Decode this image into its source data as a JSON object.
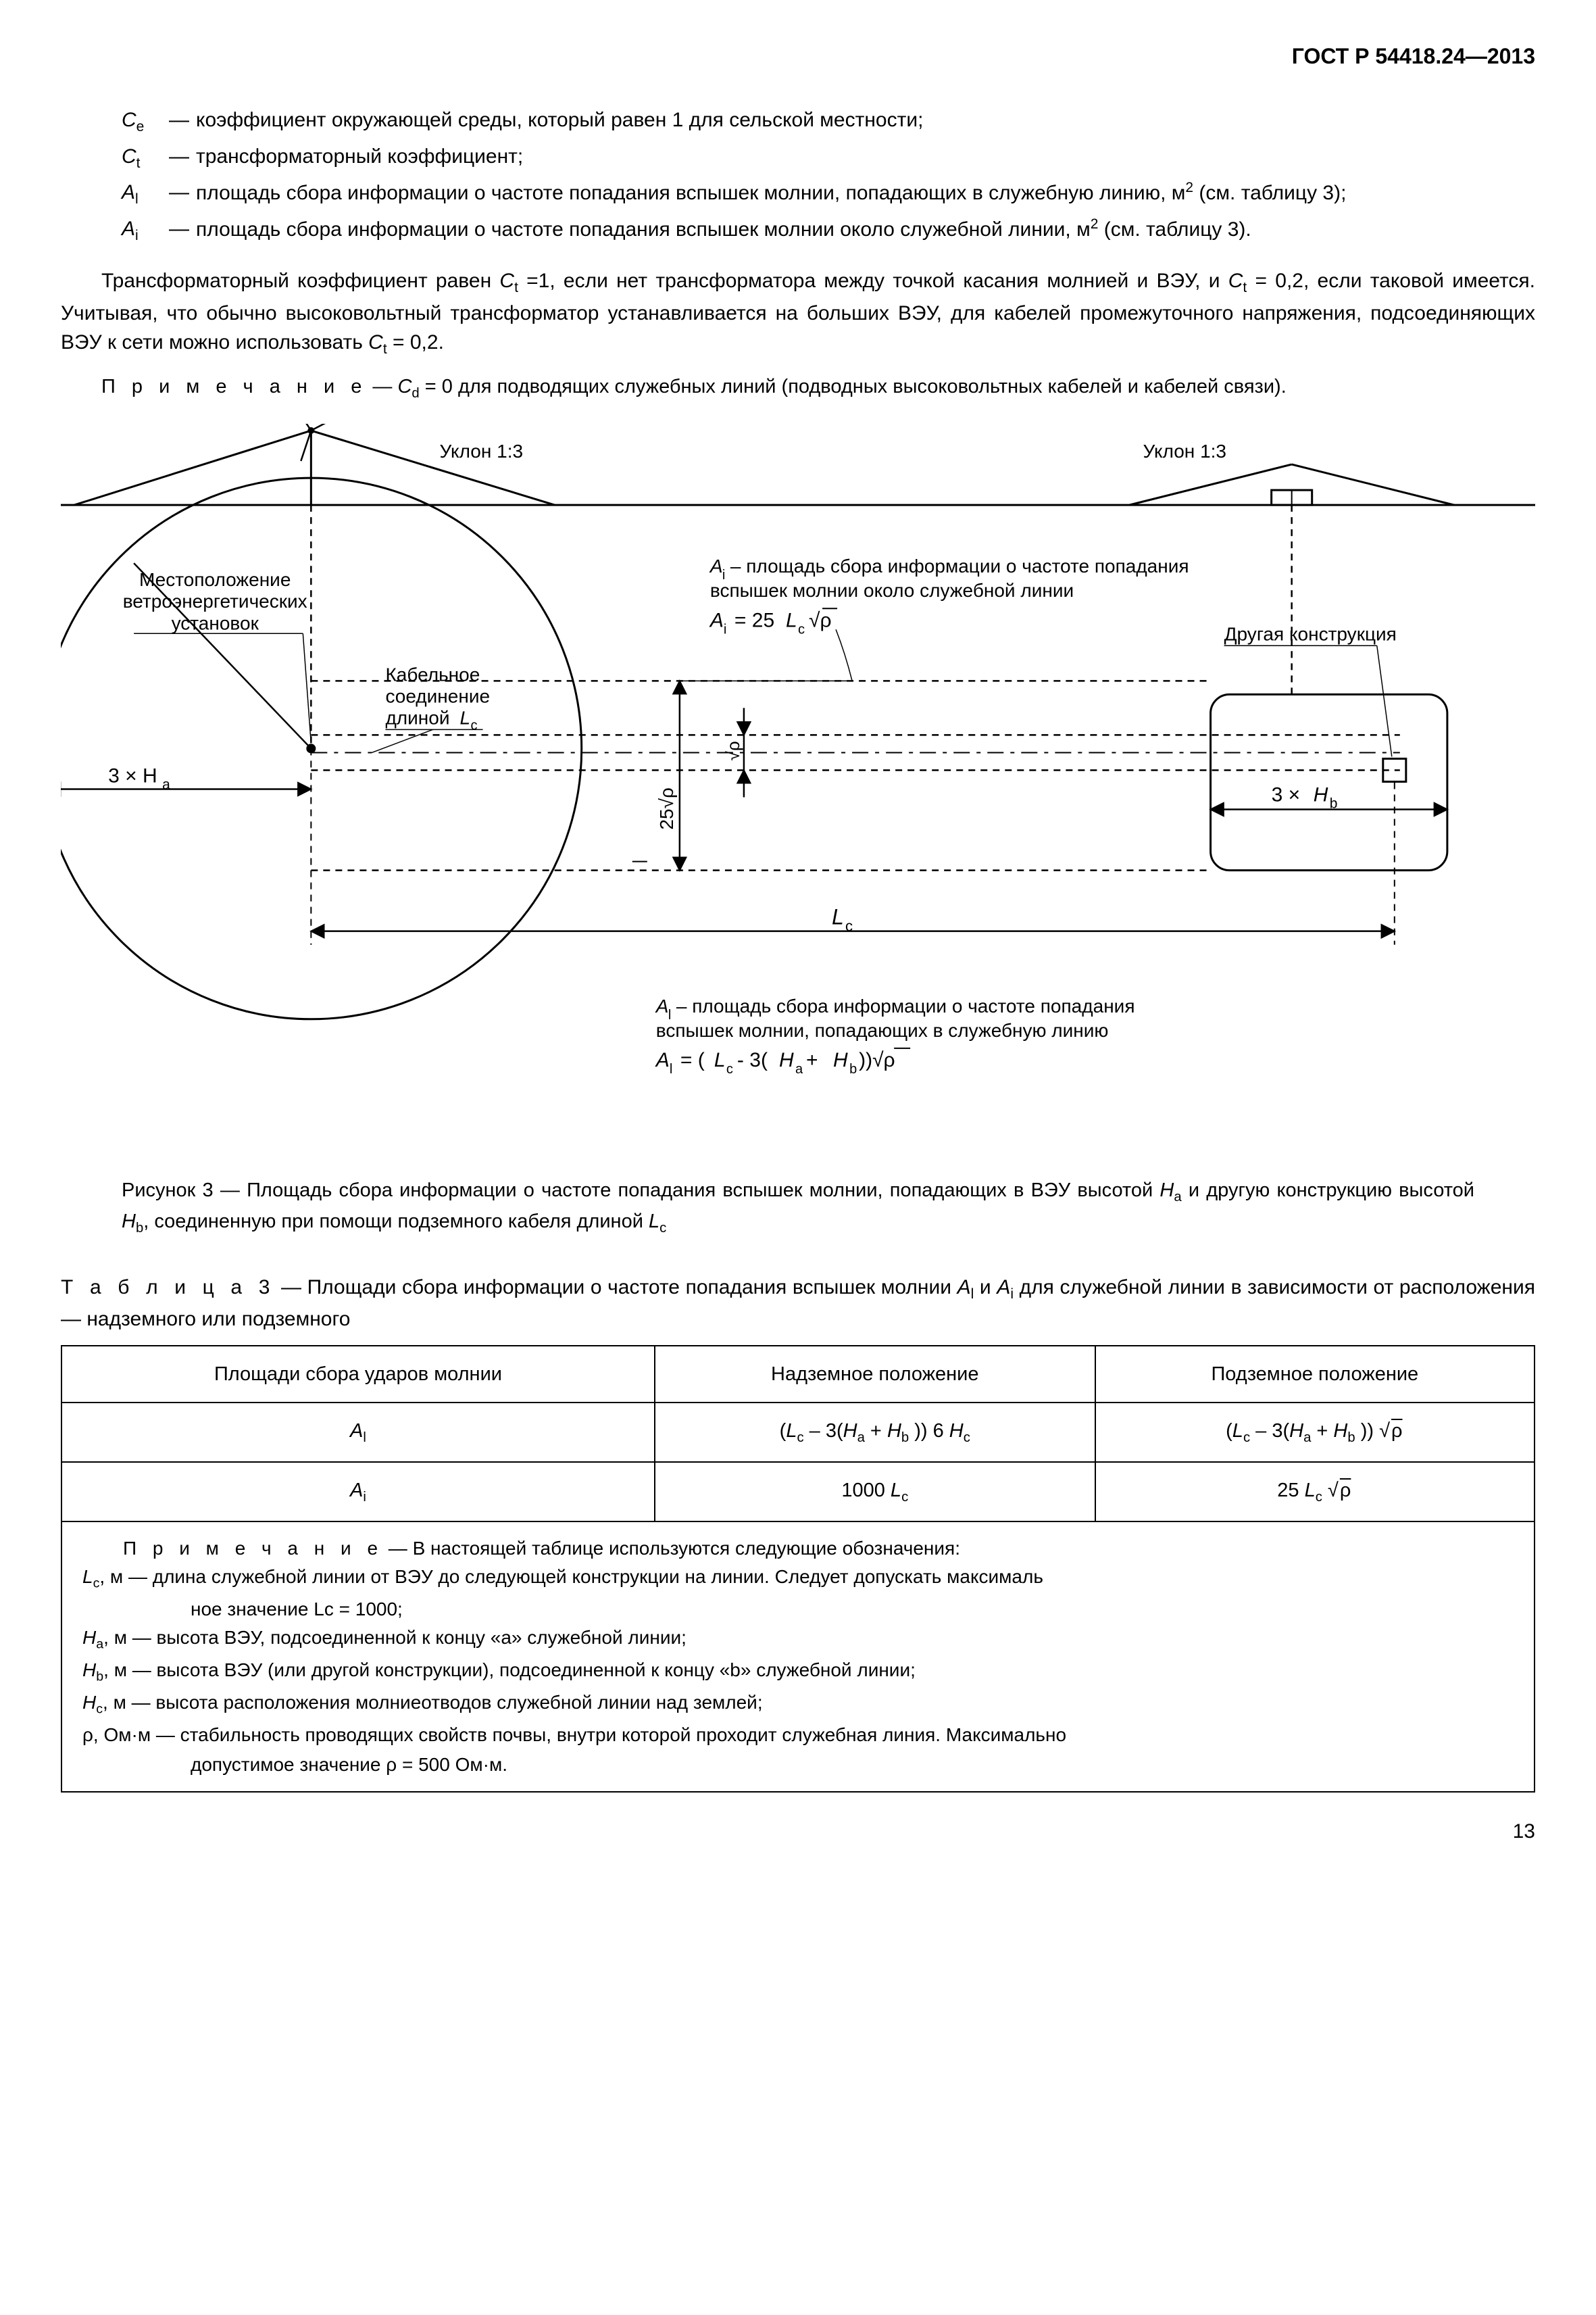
{
  "header": "ГОСТ Р 54418.24—2013",
  "defs": [
    {
      "sym": "C<sub>e</sub>",
      "text": "коэффициент окружающей среды, который равен 1 для сельской местности;"
    },
    {
      "sym": "C<sub>t</sub>",
      "text": "трансформаторный коэффициент;"
    },
    {
      "sym": "A<sub>l</sub>",
      "text": "площадь сбора информации о частоте попадания вспышек молнии, попадающих в служебную линию, м<sup>2</sup> (см. таблицу 3);"
    },
    {
      "sym": "A<sub>i</sub>",
      "text": "площадь сбора информации о частоте попадания вспышек молнии около служебной линии, м<sup>2</sup> (см. таблицу 3)."
    }
  ],
  "para1": "Трансформаторный коэффициент равен <span class=\"i\">C</span><sub>t</sub> =1, если нет трансформатора между точкой касания молни­ей и ВЭУ, и <span class=\"i\">C</span><sub>t</sub> = 0,2, если таковой имеется. Учитывая, что обычно высоковольтный трансформатор устанав­ливается на больших ВЭУ, для кабелей промежуточного напряжения, подсоединяющих ВЭУ к сети можно использовать <span class=\"i\">C</span><sub>t</sub> = 0,2.",
  "note1_label": "П р и м е ч а н и е",
  "note1_body": " — <span class=\"i\">C</span><sub>d</sub> = 0  для  подводящих  служебных  линий  (подводных  высоковольтных  кабелей и кабелей связи).",
  "diagram": {
    "slope_label": "Уклон 1:3",
    "turbine_label": "Местоположение\nветроэнергетических\nустановок",
    "cable_label": "Кабельное\nсоединение\nдлиной Lc",
    "ai_label": "Ai – площадь сбора информации о частоте попадания\nвспышек молнии около служебной линии",
    "ai_formula": "Ai = 25Lc√ρ",
    "other_struct": "Другая конструкция",
    "left_dim": "3 × Ha",
    "right_dim": "3 × Hb",
    "vert_dim": "25√ρ",
    "vert_dim2": "√ρ",
    "length": "Lc",
    "al_label": "Al – площадь сбора информации о частоте попадания\nвспышек молнии, попадающих в служебную линию",
    "al_formula": "Al = (Lc - 3(Ha + Hb))√ρ",
    "stroke": "#000000",
    "circle_r": 250,
    "dash": "10 8"
  },
  "caption_label": "Рисунок 3 — Площадь сбора информации о частоте попадания вспышек молнии, попадающих в ВЭУ высотой <span class=\"i\">H</span><sub>a</sub> и другую конструкцию высотой <span class=\"i\">H</span><sub>b</sub>, соединенную при помощи подземного кабеля длиной <span class=\"i\">L</span><sub>c</sub>",
  "table_title_label": "Т а б л и ц а  3",
  "table_title_body": " — Площади сбора информации о частоте попадания вспышек молнии <span class=\"i\">A</span><sub>l</sub> и <span class=\"i\">A</span><sub>i</sub> для служебной линии в зависимости от расположения — надземного или подземного",
  "table": {
    "cols": [
      "Площади сбора ударов молнии",
      "Надземное положение",
      "Подземное положение"
    ],
    "rows": [
      [
        "<span class=\"i\">A</span><sub>l</sub>",
        "(<span class=\"i\">L</span><sub>c</sub> – 3(<span class=\"i\">H</span><sub>a</sub> + <span class=\"i\">H</span><sub>b</sub> )) 6 <span class=\"i\">H</span><sub>c</sub>",
        "(<span class=\"i\">L</span><sub>c</sub> – 3(<span class=\"i\">H</span><sub>a</sub> + <span class=\"i\">H</span><sub>b</sub> ))  √<span class=\"sqrt\">ρ</span>"
      ],
      [
        "<span class=\"i\">A</span><sub>i</sub>",
        "1000 <span class=\"i\">L</span><sub>c</sub>",
        "25 <span class=\"i\">L</span><sub>c</sub>  √<span class=\"sqrt\">ρ</span>"
      ]
    ],
    "notes_label": "П р и м е ч а н и е",
    "notes_intro": " — В настоящей таблице используются следующие обозначения:",
    "notes": [
      "<span class=\"i\">L</span><sub>c</sub>, м  — длина служебной линии от ВЭУ до следующей конструкции на линии. Следует  допускать максималь­",
      "ное значение Lc = 1000;",
      "<span class=\"i\">H</span><sub>a</sub>, м  — высота ВЭУ, подсоединенной к концу «a» служебной линии;",
      "<span class=\"i\">H</span><sub>b</sub>, м  — высота ВЭУ (или другой конструкции), подсоединенной к концу «b» служебной линии;",
      "<span class=\"i\">H</span><sub>c</sub>, м  — высота расположения молниеотводов служебной линии над землей;",
      "ρ, Ом·м  — стабильность проводящих свойств почвы, внутри которой проходит служебная линия. Максимально",
      "допустимое значение ρ = 500 Ом·м."
    ]
  },
  "page": "13"
}
